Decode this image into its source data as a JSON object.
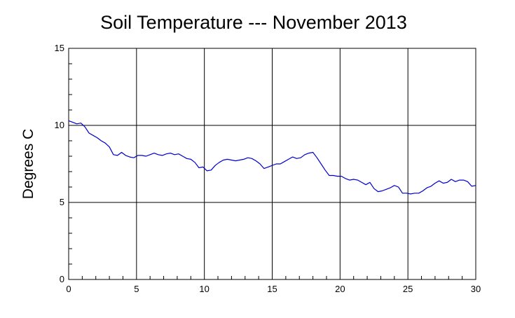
{
  "chart_data": {
    "type": "line",
    "title": "Soil Temperature --- November 2013",
    "xlabel": "",
    "ylabel": "Degrees C",
    "xlim": [
      0,
      30
    ],
    "ylim": [
      0,
      15
    ],
    "x_ticks": [
      "0",
      "5",
      "10",
      "15",
      "20",
      "25",
      "30"
    ],
    "y_ticks": [
      "0",
      "5",
      "10",
      "15"
    ],
    "grid": true,
    "legend": "none",
    "line_color": "#0000cc",
    "series": [
      {
        "x": [
          0,
          0.3,
          0.6,
          0.9,
          1.2,
          1.5,
          1.8,
          2.1,
          2.4,
          2.7,
          3.0,
          3.3,
          3.6,
          3.9,
          4.2,
          4.5,
          4.8,
          5.1,
          5.4,
          5.7,
          6.0,
          6.3,
          6.6,
          6.9,
          7.2,
          7.5,
          7.8,
          8.1,
          8.4,
          8.7,
          9.0,
          9.3,
          9.6,
          9.9,
          10.2,
          10.5,
          10.8,
          11.1,
          11.4,
          11.7,
          12.0,
          12.3,
          12.6,
          12.9,
          13.2,
          13.5,
          13.8,
          14.1,
          14.4,
          14.7,
          15.0,
          15.3,
          15.6,
          15.9,
          16.2,
          16.5,
          16.8,
          17.1,
          17.4,
          17.7,
          18.0,
          18.3,
          18.6,
          18.9,
          19.2,
          19.5,
          19.8,
          20.1,
          20.4,
          20.7,
          21.0,
          21.3,
          21.6,
          21.9,
          22.2,
          22.5,
          22.8,
          23.1,
          23.4,
          23.7,
          24.0,
          24.3,
          24.6,
          24.9,
          25.2,
          25.5,
          25.8,
          26.1,
          26.4,
          26.7,
          27.0,
          27.3,
          27.6,
          27.9,
          28.2,
          28.5,
          28.8,
          29.1,
          29.4,
          29.7,
          30.0
        ],
        "y": [
          10.3,
          10.2,
          10.1,
          10.15,
          9.9,
          9.5,
          9.35,
          9.2,
          9.0,
          8.85,
          8.6,
          8.1,
          8.05,
          8.25,
          8.05,
          7.95,
          7.9,
          8.05,
          8.05,
          8.0,
          8.1,
          8.2,
          8.1,
          8.05,
          8.15,
          8.2,
          8.1,
          8.15,
          8.0,
          7.85,
          7.8,
          7.6,
          7.25,
          7.3,
          7.05,
          7.1,
          7.4,
          7.6,
          7.75,
          7.8,
          7.75,
          7.7,
          7.75,
          7.8,
          7.9,
          7.85,
          7.7,
          7.5,
          7.2,
          7.3,
          7.4,
          7.5,
          7.5,
          7.65,
          7.8,
          7.95,
          7.85,
          7.9,
          8.1,
          8.2,
          8.25,
          7.9,
          7.5,
          7.1,
          6.75,
          6.75,
          6.7,
          6.7,
          6.55,
          6.45,
          6.5,
          6.45,
          6.3,
          6.15,
          6.3,
          5.9,
          5.7,
          5.75,
          5.85,
          5.95,
          6.1,
          6.0,
          5.6,
          5.6,
          5.55,
          5.6,
          5.6,
          5.75,
          5.95,
          6.05,
          6.25,
          6.4,
          6.25,
          6.3,
          6.5,
          6.35,
          6.45,
          6.45,
          6.35,
          6.05,
          6.1
        ]
      }
    ]
  }
}
